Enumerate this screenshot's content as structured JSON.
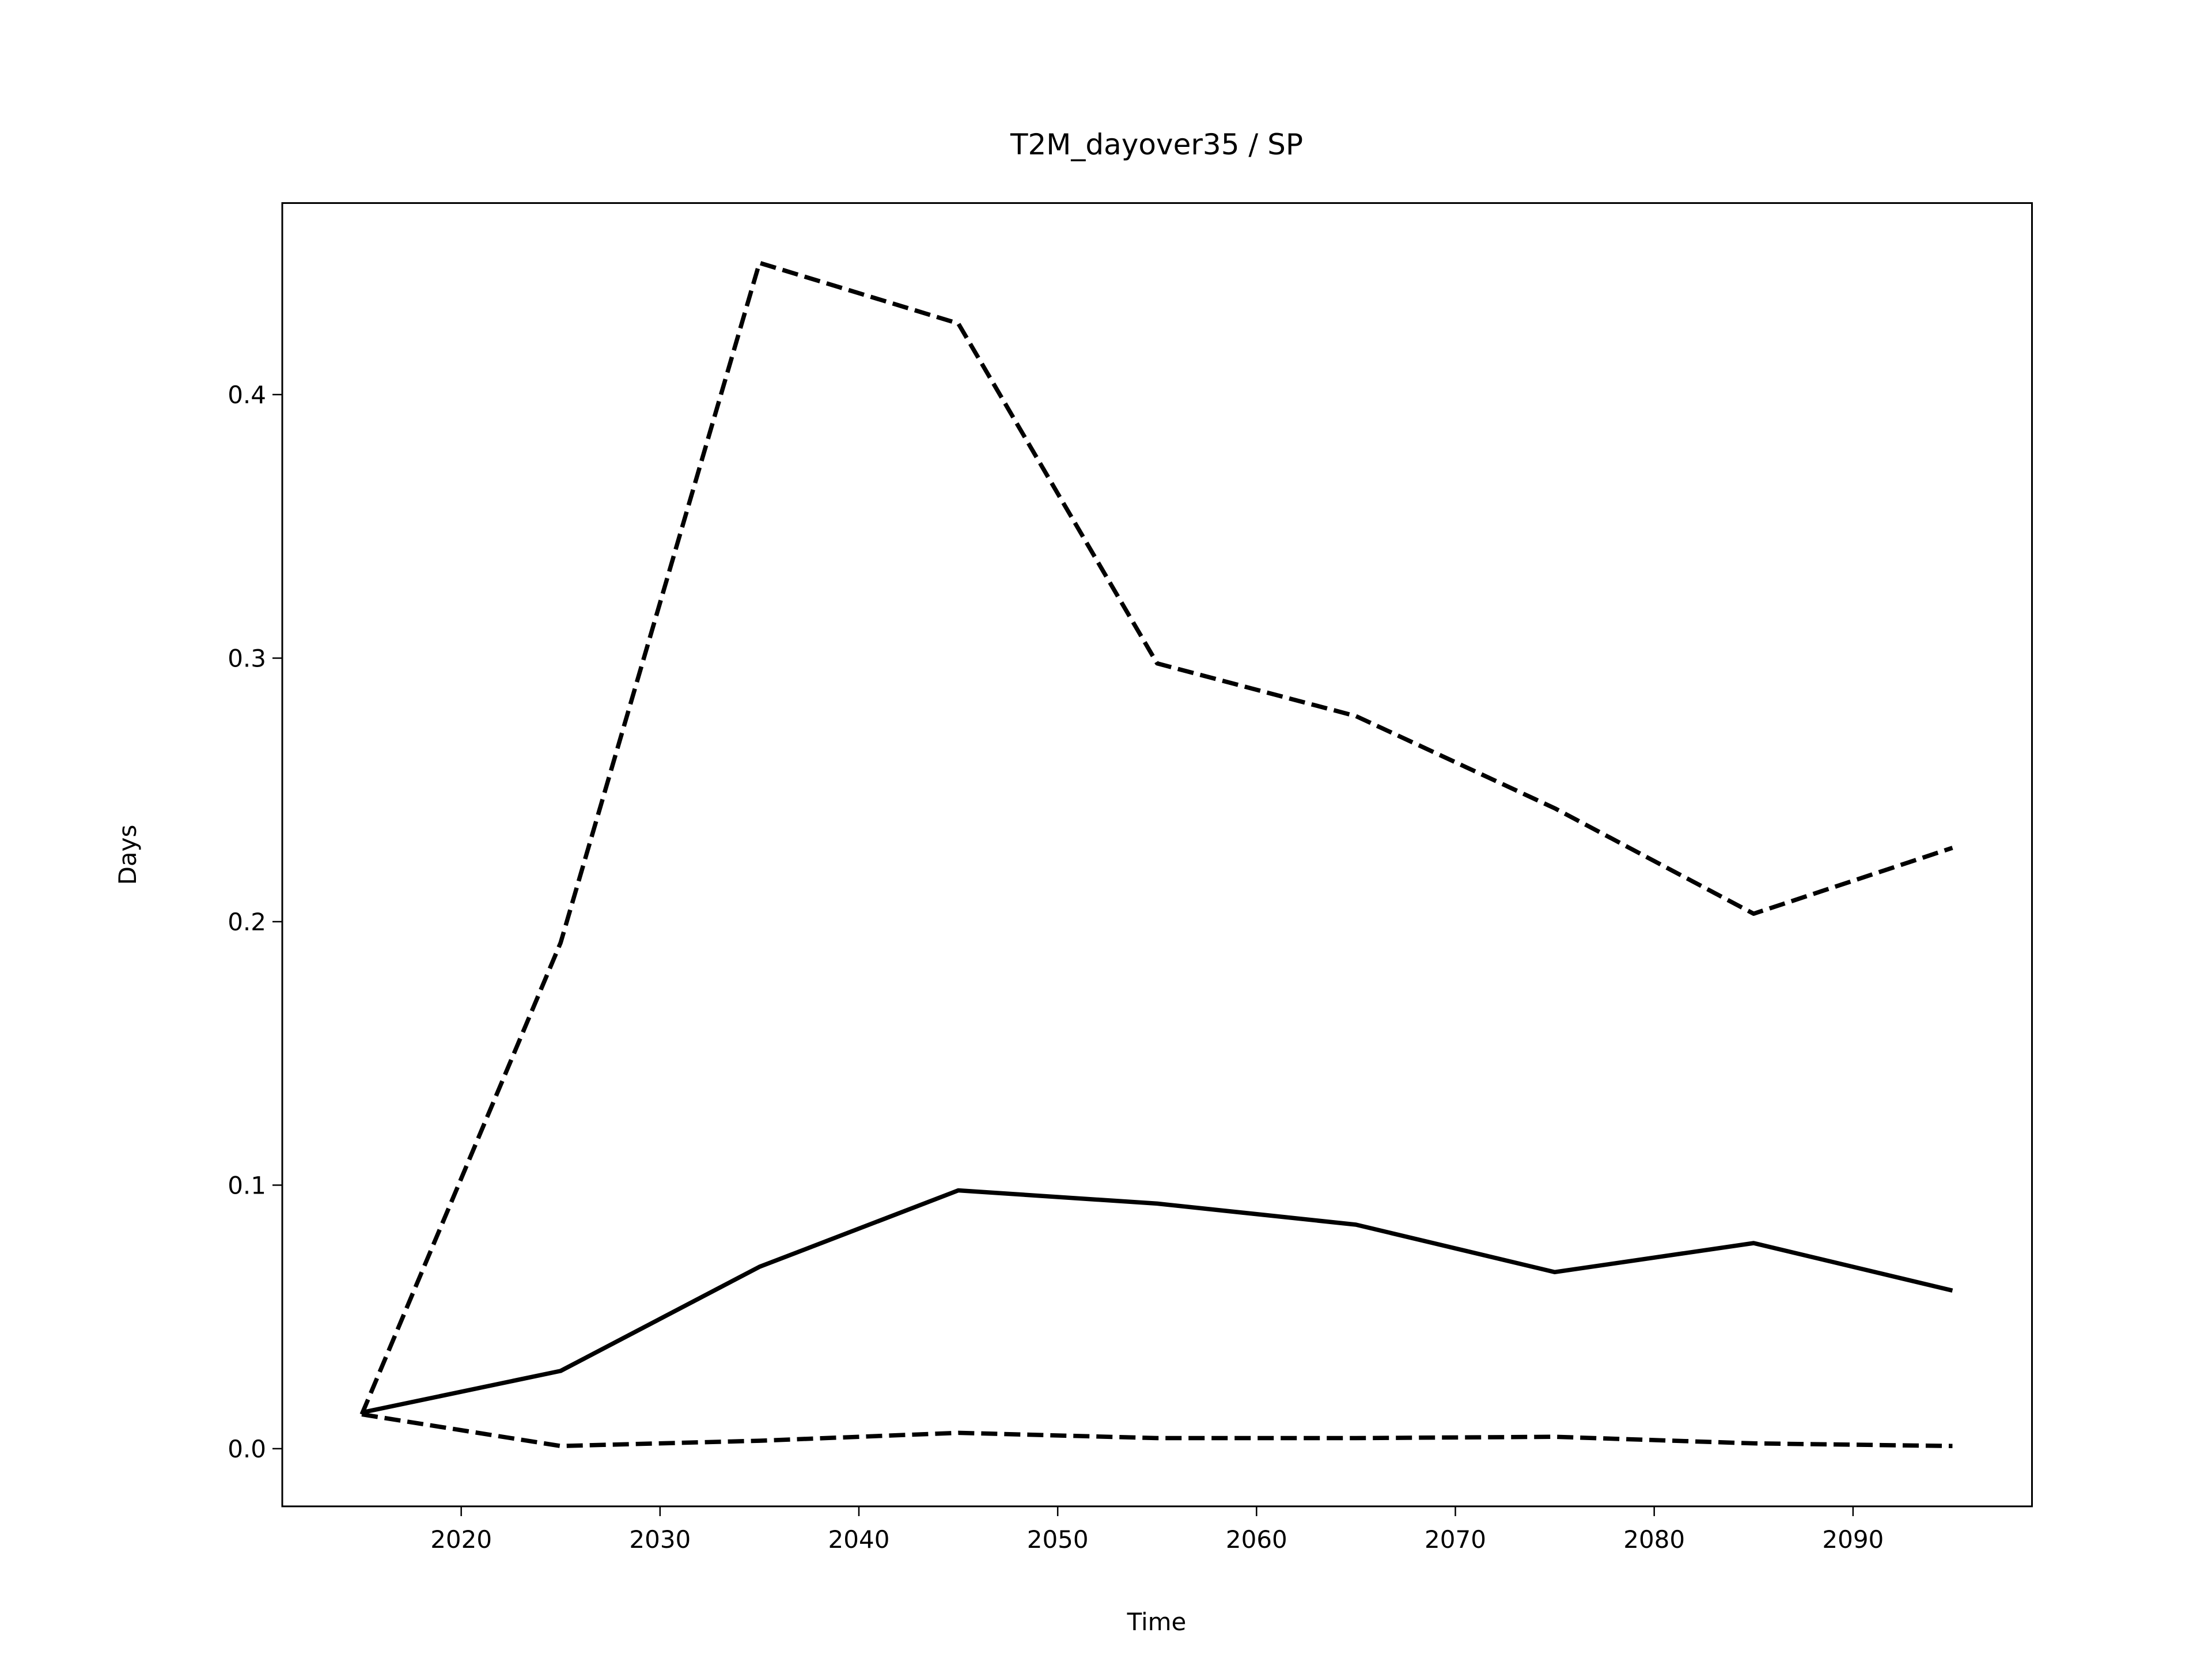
{
  "chart_data": {
    "type": "line",
    "title": "T2M_dayover35 / SP",
    "xlabel": "Time",
    "ylabel": "Days",
    "x": [
      2015,
      2025,
      2035,
      2045,
      2055,
      2065,
      2075,
      2085,
      2095
    ],
    "series": [
      {
        "color": "#000000",
        "dashed": false,
        "values": [
          0.0137,
          0.0295,
          0.069,
          0.098,
          0.093,
          0.085,
          0.067,
          0.078,
          0.06
        ]
      },
      {
        "color": "#000000",
        "dashed": true,
        "values": [
          0.013,
          0.192,
          0.45,
          0.427,
          0.298,
          0.278,
          0.243,
          0.203,
          0.228
        ]
      },
      {
        "color": "#000000",
        "dashed": true,
        "values": [
          0.013,
          0.001,
          0.003,
          0.006,
          0.004,
          0.004,
          0.0045,
          0.002,
          0.001
        ]
      }
    ],
    "xlim": [
      2011,
      2099
    ],
    "xticks": [
      2020,
      2030,
      2040,
      2050,
      2060,
      2070,
      2080,
      2090
    ],
    "ylim": [
      -0.0219,
      0.4727
    ],
    "yticks": [
      {
        "value": 0,
        "label": "0.0"
      },
      0.1,
      0.2,
      0.3,
      0.4
    ],
    "grid": false
  }
}
